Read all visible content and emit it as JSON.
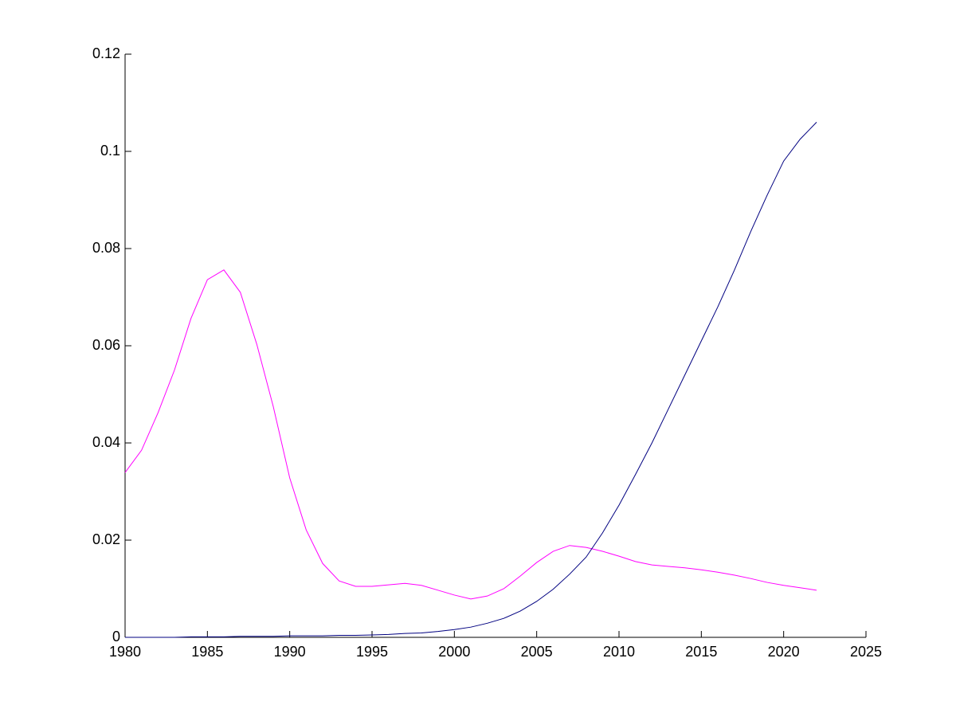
{
  "chart_data": {
    "type": "line",
    "x": [
      1980,
      1981,
      1982,
      1983,
      1984,
      1985,
      1986,
      1987,
      1988,
      1989,
      1990,
      1991,
      1992,
      1993,
      1994,
      1995,
      1996,
      1997,
      1998,
      1999,
      2000,
      2001,
      2002,
      2003,
      2004,
      2005,
      2006,
      2007,
      2008,
      2009,
      2010,
      2011,
      2012,
      2013,
      2014,
      2015,
      2016,
      2017,
      2018,
      2019,
      2020,
      2021,
      2022
    ],
    "series": [
      {
        "color": "#ff00ff",
        "values": [
          0.0339,
          0.0385,
          0.0462,
          0.055,
          0.0656,
          0.0736,
          0.0756,
          0.071,
          0.0603,
          0.0475,
          0.0328,
          0.0221,
          0.0152,
          0.0116,
          0.0105,
          0.0105,
          0.0108,
          0.0111,
          0.0107,
          0.0097,
          0.0087,
          0.0079,
          0.0085,
          0.01,
          0.0126,
          0.0154,
          0.0177,
          0.0189,
          0.0185,
          0.0177,
          0.0167,
          0.0156,
          0.0149,
          0.0146,
          0.0143,
          0.0139,
          0.0134,
          0.0128,
          0.0121,
          0.0113,
          0.0107,
          0.0102,
          0.0097
        ]
      },
      {
        "color": "#000080",
        "values": [
          0,
          0,
          0,
          0,
          0.0001,
          0.0001,
          0.0001,
          0.0002,
          0.0002,
          0.0002,
          0.0003,
          0.0003,
          0.0003,
          0.0004,
          0.0004,
          0.0005,
          0.0006,
          0.0008,
          0.0009,
          0.0012,
          0.0016,
          0.0021,
          0.0029,
          0.0039,
          0.0054,
          0.0074,
          0.0099,
          0.013,
          0.0165,
          0.0215,
          0.0272,
          0.0335,
          0.04,
          0.047,
          0.054,
          0.061,
          0.068,
          0.0755,
          0.0835,
          0.091,
          0.098,
          0.1025,
          0.106
        ]
      }
    ],
    "xlim": [
      1980,
      2025
    ],
    "xticks": [
      1980,
      1985,
      1990,
      1995,
      2000,
      2005,
      2010,
      2015,
      2020,
      2025
    ],
    "ylim": [
      0,
      0.12
    ],
    "yticks": [
      0,
      0.02,
      0.04,
      0.06,
      0.08,
      0.1,
      0.12
    ]
  }
}
